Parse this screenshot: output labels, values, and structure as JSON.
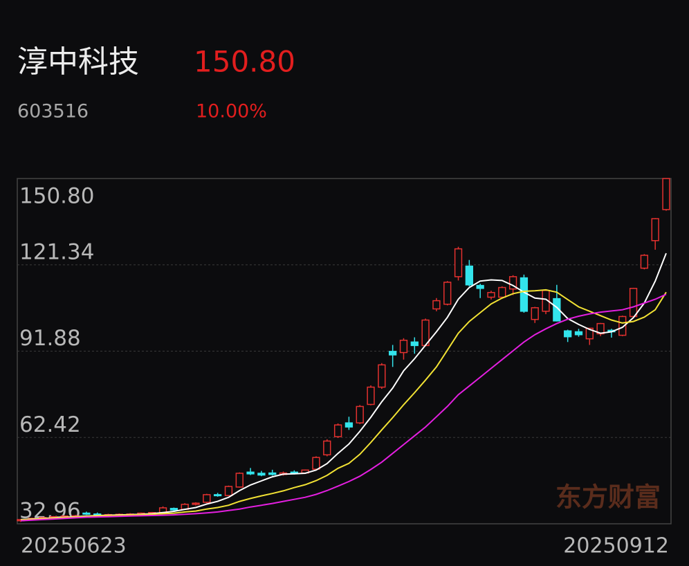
{
  "header": {
    "name": "淳中科技",
    "price": "150.80",
    "code": "603516",
    "change": "10.00%"
  },
  "watermark": "东方财富",
  "chart_data": {
    "type": "candlestick",
    "categories": [
      "20250623",
      null,
      null,
      null,
      null,
      null,
      null,
      null,
      null,
      null,
      null,
      null,
      null,
      null,
      null,
      null,
      null,
      null,
      null,
      null,
      null,
      null,
      null,
      null,
      null,
      null,
      null,
      null,
      null,
      null,
      null,
      null,
      null,
      null,
      null,
      null,
      null,
      null,
      null,
      null,
      null,
      null,
      null,
      null,
      null,
      null,
      null,
      null,
      null,
      null,
      null,
      null,
      null,
      null,
      null,
      null,
      null,
      null,
      null,
      "20250912"
    ],
    "open": [
      34.0,
      34.4,
      34.8,
      35.1,
      35.4,
      35.6,
      36.6,
      36.3,
      36.0,
      36.1,
      36.2,
      36.1,
      36.6,
      36.8,
      38.2,
      37.9,
      39.6,
      40.3,
      42.9,
      42.6,
      45.5,
      50.6,
      50.2,
      50.3,
      49.8,
      50.6,
      50.3,
      51.6,
      56.5,
      62.7,
      67.4,
      67.4,
      73.7,
      79.6,
      91.8,
      91.4,
      95.0,
      93.8,
      106.3,
      107.9,
      117.3,
      120.9,
      114.3,
      110.3,
      110.3,
      113.1,
      116.9,
      102.7,
      105.5,
      109.8,
      98.8,
      98.5,
      96.1,
      97.8,
      99.0,
      97.3,
      103.7,
      120.2,
      129.6,
      140.2
    ],
    "high": [
      34.6,
      35.0,
      35.3,
      35.6,
      35.8,
      36.0,
      37.1,
      36.8,
      36.4,
      36.5,
      36.6,
      36.8,
      37.0,
      38.9,
      38.5,
      40.0,
      40.3,
      43.2,
      43.5,
      46.0,
      50.5,
      52.0,
      51.0,
      51.4,
      50.8,
      51.2,
      51.5,
      56.0,
      61.8,
      67.2,
      69.5,
      73.5,
      80.2,
      87.8,
      94.0,
      96.3,
      96.6,
      103.0,
      110.0,
      115.8,
      127.5,
      123.0,
      114.9,
      112.5,
      114.0,
      117.8,
      118.0,
      107.0,
      113.0,
      114.5,
      99.2,
      99.5,
      99.8,
      101.5,
      99.5,
      104.0,
      113.5,
      125.0,
      137.3,
      150.8
    ],
    "low": [
      33.6,
      34.2,
      34.5,
      34.9,
      35.1,
      35.3,
      36.0,
      35.8,
      35.7,
      35.8,
      35.9,
      36.0,
      36.3,
      36.6,
      37.4,
      37.8,
      39.2,
      40.0,
      42.2,
      42.4,
      45.3,
      49.6,
      49.2,
      49.4,
      49.4,
      49.8,
      50.0,
      51.3,
      56.0,
      62.3,
      65.0,
      67.0,
      73.4,
      79.0,
      86.5,
      89.0,
      91.0,
      93.5,
      105.5,
      107.5,
      116.0,
      114.0,
      110.0,
      109.5,
      109.8,
      111.0,
      105.0,
      101.5,
      104.5,
      102.0,
      95.0,
      96.8,
      94.0,
      97.0,
      96.5,
      97.0,
      103.4,
      119.8,
      126.5,
      139.8
    ],
    "close": [
      34.4,
      34.8,
      35.1,
      35.4,
      35.6,
      35.7,
      36.3,
      36.0,
      36.1,
      36.2,
      36.3,
      36.6,
      36.8,
      38.4,
      37.7,
      39.6,
      40.0,
      42.9,
      42.6,
      45.7,
      50.2,
      50.0,
      49.6,
      49.8,
      50.3,
      50.1,
      51.3,
      55.6,
      61.2,
      66.7,
      66.0,
      73.0,
      79.6,
      87.2,
      90.6,
      95.6,
      93.8,
      102.5,
      109.1,
      115.4,
      126.8,
      114.5,
      113.3,
      111.9,
      113.6,
      117.3,
      105.5,
      106.7,
      112.6,
      102.2,
      96.8,
      97.5,
      99.7,
      101.3,
      98.5,
      103.7,
      113.3,
      124.6,
      137.1,
      150.8
    ],
    "up_color": "#e5312f",
    "down_color": "#33e4ec",
    "series": [
      {
        "color": "#ffffff",
        "values": [
          34.4,
          34.6,
          34.8,
          35.0,
          35.2,
          35.4,
          35.6,
          35.8,
          35.9,
          36.0,
          36.1,
          36.2,
          36.4,
          36.8,
          37.2,
          37.9,
          38.5,
          39.7,
          40.6,
          42.0,
          44.3,
          46.2,
          47.6,
          49.0,
          49.9,
          50.0,
          50.2,
          51.3,
          53.5,
          57.0,
          60.2,
          64.5,
          69.3,
          74.6,
          79.3,
          85.2,
          89.3,
          93.9,
          98.5,
          103.4,
          109.6,
          113.6,
          115.8,
          116.2,
          116.0,
          114.3,
          112.0,
          110.0,
          109.6,
          106.8,
          103.0,
          101.0,
          99.3,
          98.0,
          98.5,
          100.0,
          103.3,
          108.3,
          115.8,
          125.3
        ]
      },
      {
        "color": "#f2e234",
        "values": [
          34.3,
          34.5,
          34.7,
          34.9,
          35.1,
          35.3,
          35.5,
          35.7,
          35.8,
          35.9,
          36.0,
          36.1,
          36.2,
          36.4,
          36.6,
          37.0,
          37.3,
          38.0,
          38.5,
          39.3,
          40.6,
          41.6,
          42.5,
          43.3,
          44.2,
          45.3,
          46.3,
          47.7,
          49.5,
          51.9,
          53.6,
          56.7,
          60.7,
          65.0,
          69.2,
          73.6,
          77.7,
          82.0,
          86.5,
          92.2,
          98.0,
          102.0,
          105.0,
          108.0,
          110.0,
          111.5,
          112.3,
          112.5,
          112.8,
          112.0,
          109.5,
          107.0,
          105.5,
          104.0,
          102.5,
          101.5,
          102.0,
          103.5,
          106.0,
          112.0
        ]
      },
      {
        "color": "#e41fe0",
        "values": [
          34.0,
          34.2,
          34.4,
          34.6,
          34.8,
          35.0,
          35.2,
          35.3,
          35.4,
          35.5,
          35.6,
          35.7,
          35.8,
          35.9,
          36.0,
          36.2,
          36.4,
          36.7,
          37.0,
          37.5,
          38.0,
          38.7,
          39.3,
          39.9,
          40.6,
          41.3,
          42.0,
          43.0,
          44.3,
          45.8,
          47.4,
          49.2,
          51.5,
          54.0,
          57.0,
          60.0,
          63.0,
          66.0,
          69.5,
          73.0,
          77.0,
          80.0,
          83.0,
          86.0,
          89.0,
          92.0,
          95.0,
          97.5,
          99.5,
          101.3,
          102.8,
          103.8,
          104.6,
          105.2,
          105.6,
          106.0,
          107.0,
          108.3,
          109.6,
          111.3
        ]
      }
    ],
    "ylim": [
      32.96,
      150.8
    ],
    "yticks": [
      32.96,
      62.42,
      91.88,
      121.34,
      {
        "value": 150.8,
        "label": "150.80"
      }
    ],
    "grid": true
  }
}
